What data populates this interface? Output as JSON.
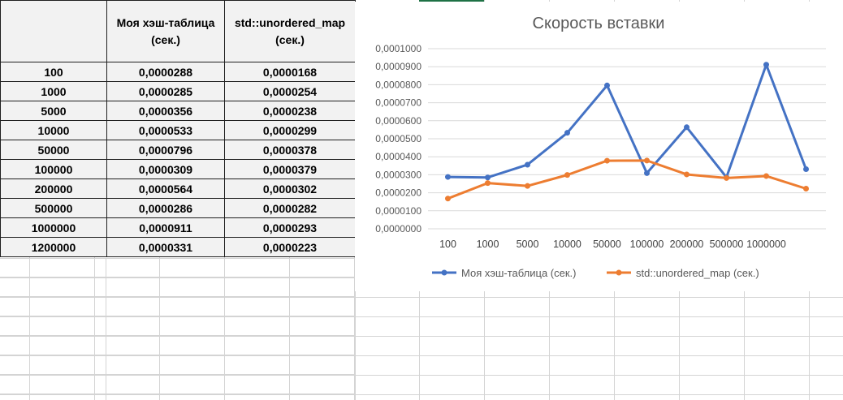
{
  "table": {
    "headers": [
      "",
      "Моя хэш-таблица (сек.)",
      "std::unordered_map (сек.)"
    ],
    "rows": [
      [
        "100",
        "0,0000288",
        "0,0000168"
      ],
      [
        "1000",
        "0,0000285",
        "0,0000254"
      ],
      [
        "5000",
        "0,0000356",
        "0,0000238"
      ],
      [
        "10000",
        "0,0000533",
        "0,0000299"
      ],
      [
        "50000",
        "0,0000796",
        "0,0000378"
      ],
      [
        "100000",
        "0,0000309",
        "0,0000379"
      ],
      [
        "200000",
        "0,0000564",
        "0,0000302"
      ],
      [
        "500000",
        "0,0000286",
        "0,0000282"
      ],
      [
        "1000000",
        "0,0000911",
        "0,0000293"
      ],
      [
        "1200000",
        "0,0000331",
        "0,0000223"
      ]
    ]
  },
  "chart_data": {
    "type": "line",
    "title": "Скорость вставки",
    "xlabel": "",
    "ylabel": "",
    "categories": [
      "100",
      "1000",
      "5000",
      "10000",
      "50000",
      "100000",
      "200000",
      "500000",
      "1000000",
      ""
    ],
    "series": [
      {
        "name": "Моя хэш-таблица (сек.)",
        "color": "#4472c4",
        "values": [
          2.88e-05,
          2.85e-05,
          3.56e-05,
          5.33e-05,
          7.96e-05,
          3.09e-05,
          5.64e-05,
          2.86e-05,
          9.11e-05,
          3.31e-05
        ]
      },
      {
        "name": "std::unordered_map (сек.)",
        "color": "#ed7d31",
        "values": [
          1.68e-05,
          2.54e-05,
          2.38e-05,
          2.99e-05,
          3.78e-05,
          3.79e-05,
          3.02e-05,
          2.82e-05,
          2.93e-05,
          2.23e-05
        ]
      }
    ],
    "ylim": [
      0,
      0.0001
    ],
    "y_ticks": [
      "0,0000000",
      "0,0000100",
      "0,0000200",
      "0,0000300",
      "0,0000400",
      "0,0000500",
      "0,0000600",
      "0,0000700",
      "0,0000800",
      "0,0000900",
      "0,0001000"
    ],
    "grid": true,
    "legend_position": "bottom"
  },
  "colors": {
    "gridline": "#d9d9d9",
    "axis_text": "#595959",
    "sheet_accent": "#1e7145"
  }
}
